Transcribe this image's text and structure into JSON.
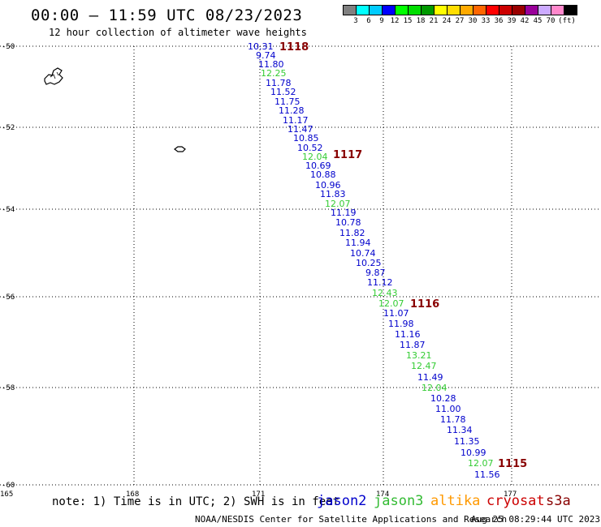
{
  "title": "00:00 – 11:59 UTC 08/23/2023",
  "subtitle": "12 hour collection of altimeter wave heights",
  "legend": {
    "colors": [
      "#808080",
      "#00ffff",
      "#00ccff",
      "#0000ff",
      "#00ff00",
      "#00dd00",
      "#009900",
      "#ffff00",
      "#ffdd00",
      "#ffaa00",
      "#ff6600",
      "#ff0000",
      "#cc0000",
      "#990000",
      "#990099",
      "#ccaaff",
      "#ff88cc",
      "#000000"
    ],
    "labels": [
      "3",
      "6",
      "9",
      "12",
      "15",
      "18",
      "21",
      "24",
      "27",
      "30",
      "33",
      "36",
      "39",
      "42",
      "45",
      "70",
      "(ft)"
    ]
  },
  "axes": {
    "lat_labels": [
      "-50",
      "-52",
      "-54",
      "-56",
      "-58",
      "-60"
    ],
    "lon_labels": [
      "165",
      "168",
      "171",
      "174",
      "177"
    ]
  },
  "passes": [
    {
      "label": "1118",
      "color": "#880000"
    },
    {
      "label": "1117",
      "color": "#880000"
    },
    {
      "label": "1116",
      "color": "#880000"
    },
    {
      "label": "1115",
      "color": "#880000"
    }
  ],
  "wave_heights": [
    {
      "value": "10.31",
      "color": "#0000cc"
    },
    {
      "value": "9.74",
      "color": "#0000cc"
    },
    {
      "value": "11.80",
      "color": "#0000cc"
    },
    {
      "value": "12.25",
      "color": "#33cc33"
    },
    {
      "value": "11.78",
      "color": "#0000cc"
    },
    {
      "value": "11.52",
      "color": "#0000cc"
    },
    {
      "value": "11.75",
      "color": "#0000cc"
    },
    {
      "value": "11.28",
      "color": "#0000cc"
    },
    {
      "value": "11.17",
      "color": "#0000cc"
    },
    {
      "value": "11.47",
      "color": "#0000cc"
    },
    {
      "value": "10.85",
      "color": "#0000cc"
    },
    {
      "value": "10.52",
      "color": "#0000cc"
    },
    {
      "value": "12.04",
      "color": "#33cc33"
    },
    {
      "value": "10.69",
      "color": "#0000cc"
    },
    {
      "value": "10.88",
      "color": "#0000cc"
    },
    {
      "value": "10.96",
      "color": "#0000cc"
    },
    {
      "value": "11.83",
      "color": "#0000cc"
    },
    {
      "value": "12.07",
      "color": "#33cc33"
    },
    {
      "value": "11.19",
      "color": "#0000cc"
    },
    {
      "value": "10.78",
      "color": "#0000cc"
    },
    {
      "value": "11.82",
      "color": "#0000cc"
    },
    {
      "value": "11.94",
      "color": "#0000cc"
    },
    {
      "value": "10.74",
      "color": "#0000cc"
    },
    {
      "value": "10.25",
      "color": "#0000cc"
    },
    {
      "value": "9.87",
      "color": "#0000cc"
    },
    {
      "value": "11.12",
      "color": "#0000cc"
    },
    {
      "value": "12.43",
      "color": "#33cc33"
    },
    {
      "value": "12.07",
      "color": "#33cc33"
    },
    {
      "value": "11.07",
      "color": "#0000cc"
    },
    {
      "value": "11.98",
      "color": "#0000cc"
    },
    {
      "value": "11.16",
      "color": "#0000cc"
    },
    {
      "value": "11.87",
      "color": "#0000cc"
    },
    {
      "value": "13.21",
      "color": "#33cc33"
    },
    {
      "value": "12.47",
      "color": "#33cc33"
    },
    {
      "value": "11.49",
      "color": "#0000cc"
    },
    {
      "value": "12.04",
      "color": "#33cc33"
    },
    {
      "value": "10.28",
      "color": "#0000cc"
    },
    {
      "value": "11.00",
      "color": "#0000cc"
    },
    {
      "value": "11.78",
      "color": "#0000cc"
    },
    {
      "value": "11.34",
      "color": "#0000cc"
    },
    {
      "value": "11.35",
      "color": "#0000cc"
    },
    {
      "value": "10.99",
      "color": "#0000cc"
    },
    {
      "value": "12.07",
      "color": "#33cc33"
    },
    {
      "value": "11.56",
      "color": "#0000cc"
    }
  ],
  "footer": {
    "note": "note: 1) Time is in UTC; 2) SWH is in feet",
    "satellites": {
      "jason2": "jason2",
      "jason3": "jason3",
      "altika": "altika",
      "cryosat": "cryosat",
      "s3a": "s3a"
    },
    "credit": "NOAA/NESDIS Center for Satellite Applications and Research",
    "timestamp": "Aug 25 08:29:44 UTC 2023"
  }
}
